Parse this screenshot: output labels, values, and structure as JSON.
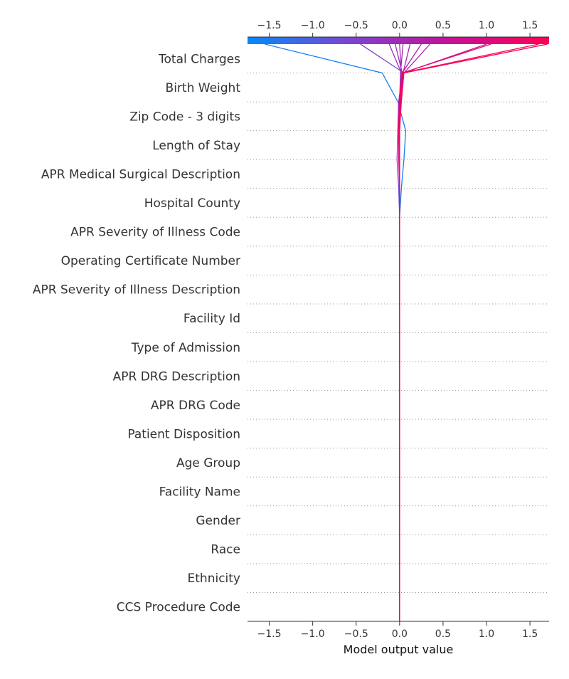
{
  "chart_data": {
    "type": "line",
    "subtype": "decision_plot",
    "xlabel": "Model output value",
    "xlim": [
      -1.75,
      1.72
    ],
    "x_ticks": [
      -1.5,
      -1.0,
      -0.5,
      0.0,
      0.5,
      1.0,
      1.5
    ],
    "x_tick_labels": [
      "−1.5",
      "−1.0",
      "−0.5",
      "0.0",
      "0.5",
      "1.0",
      "1.5"
    ],
    "base_value": 0.0,
    "colormap": [
      "#008bfb",
      "#7a45d4",
      "#c4119a",
      "#ff0052"
    ],
    "features_top_to_bottom": [
      "Total Charges",
      "Birth Weight",
      "Zip Code - 3 digits",
      "Length of Stay",
      "APR Medical Surgical Description",
      "Hospital County",
      "APR Severity of Illness Code",
      "Operating Certificate Number",
      "APR Severity of Illness Description",
      "Facility Id",
      "Type of Admission",
      "APR DRG Description",
      "APR DRG Code",
      "Patient Disposition",
      "Age Group",
      "Facility Name",
      "Gender",
      "Race",
      "Ethnicity",
      "CCS Procedure Code"
    ],
    "series": [
      {
        "values": [
          -0.2,
          -0.02,
          0.07,
          0.05,
          0.02,
          0.0,
          0.0,
          0.0,
          0.0,
          0.0,
          0.0,
          0.0,
          0.0,
          0.0,
          0.0,
          0.0,
          0.0,
          0.0,
          0.0,
          0.0,
          -1.55
        ]
      },
      {
        "values": [
          0.05,
          -0.01,
          -0.02,
          -0.03,
          -0.01,
          0.0,
          0.0,
          0.0,
          0.0,
          0.0,
          0.0,
          0.0,
          0.0,
          0.0,
          0.0,
          0.0,
          0.0,
          0.0,
          0.0,
          0.0,
          -0.45
        ]
      },
      {
        "values": [
          0.02,
          0.0,
          -0.01,
          0.0,
          0.0,
          0.0,
          0.0,
          0.0,
          0.0,
          0.0,
          0.0,
          0.0,
          0.0,
          0.0,
          0.0,
          0.0,
          0.0,
          0.0,
          0.0,
          0.0,
          -0.12
        ]
      },
      {
        "values": [
          0.03,
          0.01,
          0.0,
          0.0,
          0.0,
          0.0,
          0.0,
          0.0,
          0.0,
          0.0,
          0.0,
          0.0,
          0.0,
          0.0,
          0.0,
          0.0,
          0.0,
          0.0,
          0.0,
          0.0,
          -0.05
        ]
      },
      {
        "values": [
          0.02,
          0.01,
          0.0,
          0.0,
          0.0,
          0.0,
          0.0,
          0.0,
          0.0,
          0.0,
          0.0,
          0.0,
          0.0,
          0.0,
          0.0,
          0.0,
          0.0,
          0.0,
          0.0,
          0.0,
          0.0
        ]
      },
      {
        "values": [
          0.01,
          0.0,
          0.0,
          0.0,
          0.0,
          0.0,
          0.0,
          0.0,
          0.0,
          0.0,
          0.0,
          0.0,
          0.0,
          0.0,
          0.0,
          0.0,
          0.0,
          0.0,
          0.0,
          0.0,
          0.04
        ]
      },
      {
        "values": [
          0.04,
          0.01,
          0.0,
          0.0,
          0.0,
          0.0,
          0.0,
          0.0,
          0.0,
          0.0,
          0.0,
          0.0,
          0.0,
          0.0,
          0.0,
          0.0,
          0.0,
          0.0,
          0.0,
          0.0,
          0.12
        ]
      },
      {
        "values": [
          0.03,
          -0.01,
          -0.02,
          0.0,
          0.0,
          0.0,
          0.0,
          0.0,
          0.0,
          0.0,
          0.0,
          0.0,
          0.0,
          0.0,
          0.0,
          0.0,
          0.0,
          0.0,
          0.0,
          0.0,
          0.25
        ]
      },
      {
        "values": [
          0.05,
          0.0,
          -0.01,
          0.0,
          0.0,
          0.0,
          0.0,
          0.0,
          0.0,
          0.0,
          0.0,
          0.0,
          0.0,
          0.0,
          0.0,
          0.0,
          0.0,
          0.0,
          0.0,
          0.0,
          0.35
        ]
      },
      {
        "values": [
          0.04,
          0.01,
          -0.01,
          -0.01,
          0.0,
          0.0,
          0.0,
          0.0,
          0.0,
          0.0,
          0.0,
          0.0,
          0.0,
          0.0,
          0.0,
          0.0,
          0.0,
          0.0,
          0.0,
          0.0,
          1.0
        ]
      },
      {
        "values": [
          0.03,
          0.01,
          0.0,
          0.0,
          0.0,
          0.0,
          0.0,
          0.0,
          0.0,
          0.0,
          0.0,
          0.0,
          0.0,
          0.0,
          0.0,
          0.0,
          0.0,
          0.0,
          0.0,
          0.0,
          1.05
        ]
      },
      {
        "values": [
          0.03,
          0.0,
          -0.01,
          0.0,
          0.0,
          0.0,
          0.0,
          0.0,
          0.0,
          0.0,
          0.0,
          0.0,
          0.0,
          0.0,
          0.0,
          0.0,
          0.0,
          0.0,
          0.0,
          0.0,
          1.6
        ]
      },
      {
        "values": [
          0.05,
          0.02,
          0.0,
          0.0,
          0.0,
          0.0,
          0.0,
          0.0,
          0.0,
          0.0,
          0.0,
          0.0,
          0.0,
          0.0,
          0.0,
          0.0,
          0.0,
          0.0,
          0.0,
          0.0,
          1.7
        ]
      }
    ]
  }
}
